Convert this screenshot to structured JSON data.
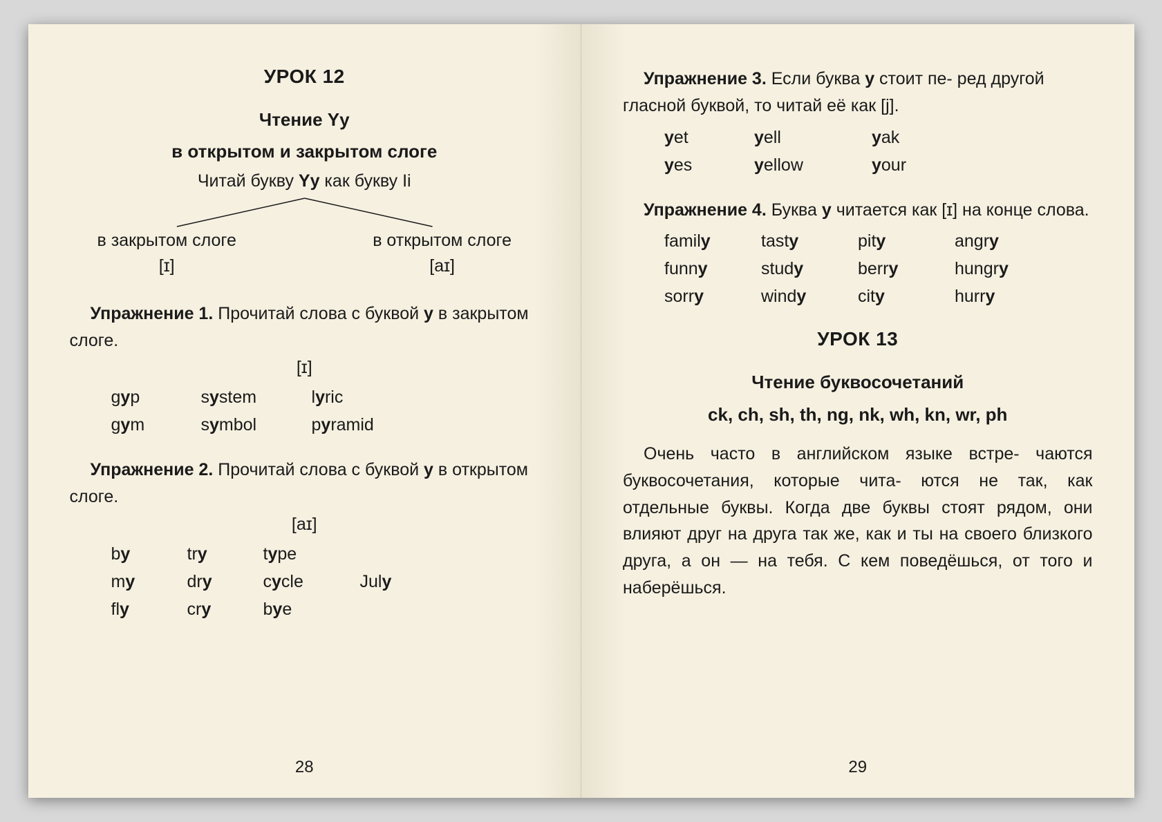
{
  "colors": {
    "page_bg": "#f5f0e0",
    "text": "#1a1a1a",
    "outer_bg": "#d8d8d8",
    "spine_shadow": "#e8e2d0"
  },
  "typography": {
    "body_fontsize": 25,
    "title_fontsize": 28,
    "font_family": "Arial"
  },
  "left": {
    "lesson_title": "УРОК 12",
    "subtitle_line1": "Чтение Yy",
    "subtitle_line2": "в открытом и закрытом слоге",
    "instruction_pre": "Читай букву ",
    "instruction_bold": "Yy",
    "instruction_post": " как букву Ii",
    "branch_left_label": "в закрытом слоге",
    "branch_left_ipa": "[ɪ]",
    "branch_right_label": "в открытом слоге",
    "branch_right_ipa": "[aɪ]",
    "ex1_label": "Упражнение 1.",
    "ex1_text_pre": " Прочитай слова с буквой ",
    "ex1_text_bold": "y",
    "ex1_text_post": " в закрытом слоге.",
    "ex1_ipa": "[ɪ]",
    "ex1_words": [
      [
        "g<b>y</b>p",
        "s<b>y</b>stem",
        "l<b>y</b>ric"
      ],
      [
        "g<b>y</b>m",
        "s<b>y</b>mbol",
        "p<b>y</b>ramid"
      ]
    ],
    "ex2_label": "Упражнение 2.",
    "ex2_text_pre": " Прочитай слова с буквой ",
    "ex2_text_bold": "y",
    "ex2_text_post": " в открытом слоге.",
    "ex2_ipa": "[aɪ]",
    "ex2_words": [
      [
        "b<b>y</b>",
        "tr<b>y</b>",
        "t<b>y</b>pe",
        ""
      ],
      [
        "m<b>y</b>",
        "dr<b>y</b>",
        "c<b>y</b>cle",
        "Jul<b>y</b>"
      ],
      [
        "fl<b>y</b>",
        "cr<b>y</b>",
        "b<b>y</b>e",
        ""
      ]
    ],
    "page_num": "28"
  },
  "right": {
    "ex3_label": "Упражнение 3.",
    "ex3_text_pre": " Если буква ",
    "ex3_text_bold": "y",
    "ex3_text_mid": " стоит пе-\nред другой гласной буквой, то читай её как [j].",
    "ex3_words": [
      [
        "<b>y</b>et",
        "<b>y</b>ell",
        "<b>y</b>ak"
      ],
      [
        "<b>y</b>es",
        "<b>y</b>ellow",
        "<b>y</b>our"
      ]
    ],
    "ex4_label": "Упражнение 4.",
    "ex4_text_pre": " Буква ",
    "ex4_text_bold": "y",
    "ex4_text_post": " читается как [ɪ] на конце слова.",
    "ex4_words": [
      [
        "famil<b>y</b>",
        "tast<b>y</b>",
        "pit<b>y</b>",
        "angr<b>y</b>"
      ],
      [
        "funn<b>y</b>",
        "stud<b>y</b>",
        "berr<b>y</b>",
        "hungr<b>y</b>"
      ],
      [
        "sorr<b>y</b>",
        "wind<b>y</b>",
        "cit<b>y</b>",
        "hurr<b>y</b>"
      ]
    ],
    "lesson13_title": "УРОК 13",
    "lesson13_sub1": "Чтение буквосочетаний",
    "lesson13_sub2": "ck, ch, sh, th, ng, nk, wh, kn, wr, ph",
    "lesson13_body": "Очень часто в английском языке встре-\nчаются буквосочетания, которые чита-\nются не так, как отдельные буквы. Когда две буквы стоят рядом, они влияют друг на друга так же, как и ты на своего близкого друга, а он — на тебя. С кем поведёшься, от того и наберёшься.",
    "page_num": "29"
  }
}
